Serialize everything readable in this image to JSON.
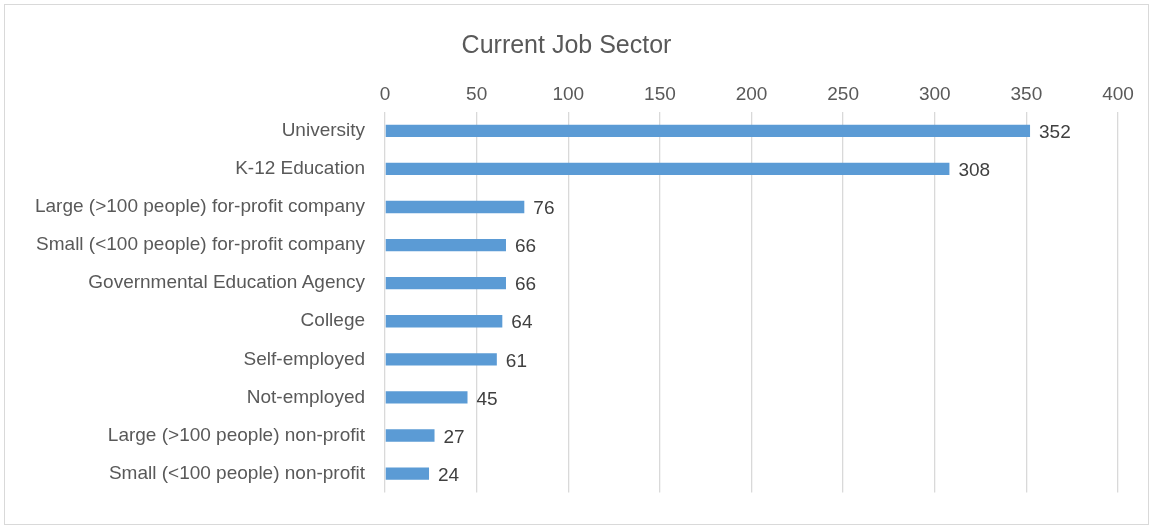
{
  "chart_data": {
    "type": "bar",
    "orientation": "horizontal",
    "title": "Current Job Sector",
    "categories": [
      "University",
      "K-12 Education",
      "Large (>100 people) for-profit company",
      "Small (<100 people) for-profit company",
      "Governmental Education Agency",
      "College",
      "Self-employed",
      "Not-employed",
      "Large (>100 people) non-profit",
      "Small (<100 people) non-profit"
    ],
    "values": [
      352,
      308,
      76,
      66,
      66,
      64,
      61,
      45,
      27,
      24
    ],
    "color": "#5b9bd5",
    "xlim": [
      0,
      400
    ],
    "xticks": [
      0,
      50,
      100,
      150,
      200,
      250,
      300,
      350,
      400
    ],
    "grid": "x",
    "data_labels": true
  }
}
